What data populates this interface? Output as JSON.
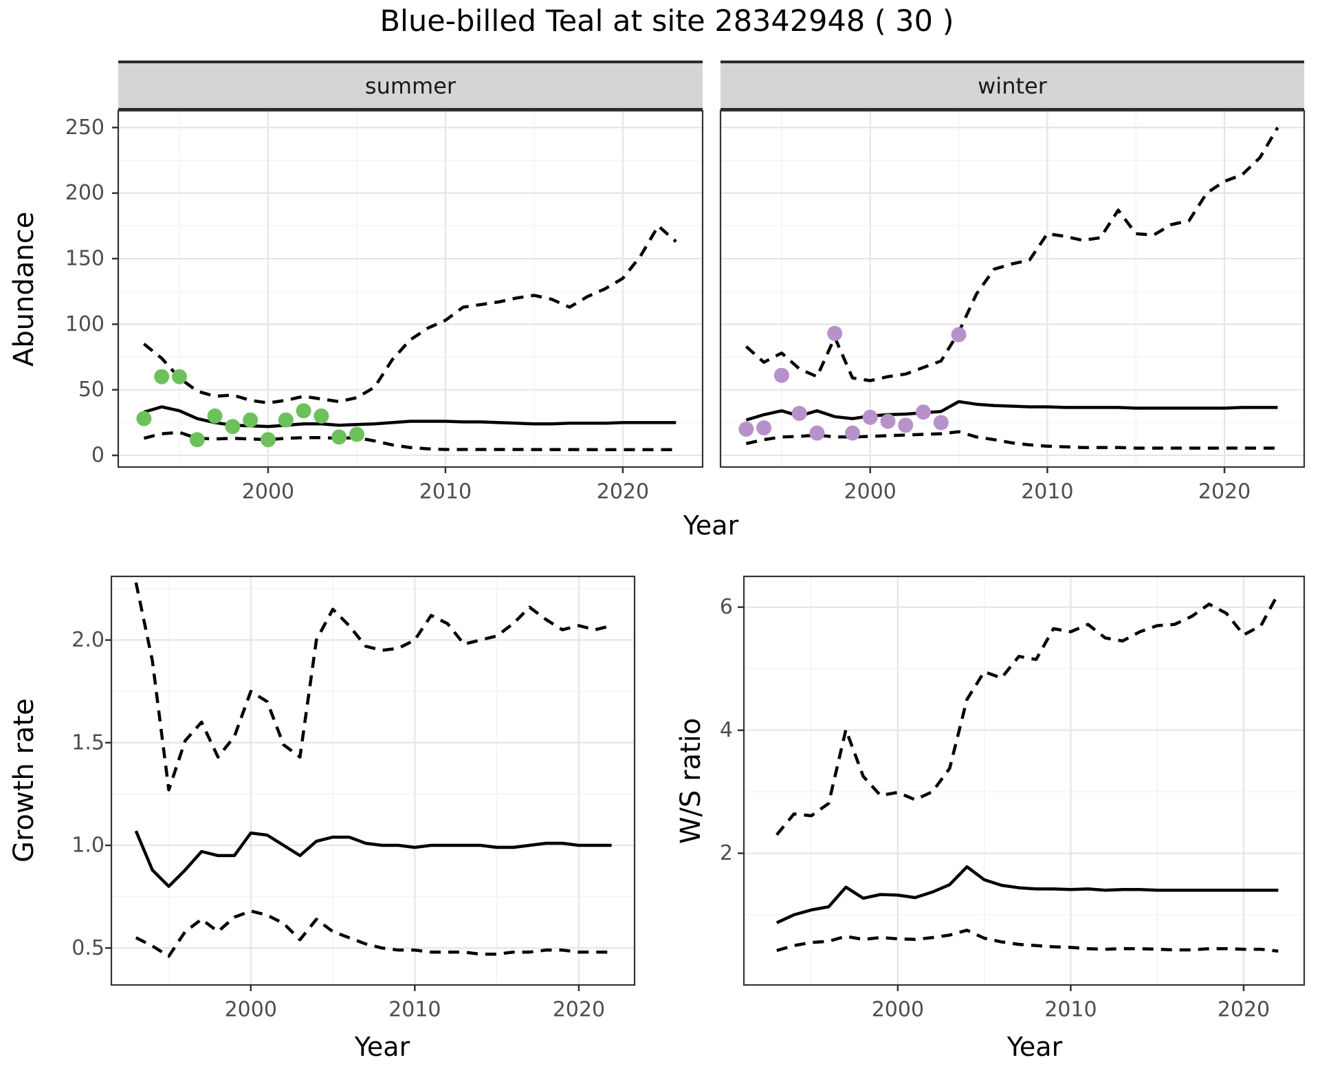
{
  "title": "Blue-billed Teal at site 28342948 ( 30 )",
  "facets": [
    "summer",
    "winter"
  ],
  "axis_labels": {
    "abundance": "Abundance",
    "growth": "Growth rate",
    "ws": "W/S ratio",
    "year": "Year"
  },
  "colors": {
    "summer_points": "#6dc15b",
    "winter_points": "#b792ca",
    "line": "#000000",
    "panel_border": "#333333",
    "grid_major": "#e5e5e5",
    "grid_minor": "#f2f2f2",
    "tick_label": "#4d4d4d",
    "strip_fill": "#d5d5d5"
  },
  "chart_data": [
    {
      "id": "abundance-summer",
      "type": "line",
      "facet": "summer",
      "xlabel": "Year",
      "ylabel": "Abundance",
      "xlim": [
        1991.55,
        2024.5
      ],
      "ylim": [
        -8.9,
        262.8
      ],
      "x_ticks": {
        "values": [
          2000,
          2010,
          2020
        ],
        "labels": [
          "2000",
          "2010",
          "2020"
        ]
      },
      "x_minor": [
        1995,
        2005,
        2015
      ],
      "y_ticks": {
        "values": [
          0,
          50,
          100,
          150,
          200,
          250
        ],
        "labels": [
          "0",
          "50",
          "100",
          "150",
          "200",
          "250"
        ]
      },
      "y_minor": [
        25,
        75,
        125,
        175,
        225
      ],
      "x": [
        1993,
        1994,
        1995,
        1996,
        1997,
        1998,
        1999,
        2000,
        2001,
        2002,
        2003,
        2004,
        2005,
        2006,
        2007,
        2008,
        2009,
        2010,
        2011,
        2012,
        2013,
        2014,
        2015,
        2016,
        2017,
        2018,
        2019,
        2020,
        2021,
        2022,
        2023
      ],
      "series": [
        {
          "name": "upper-95ci",
          "style": "dashed",
          "values": [
            85,
            74,
            59,
            49,
            45,
            46,
            42,
            40,
            42,
            45,
            43,
            41,
            44,
            52,
            73,
            88,
            97,
            103,
            113,
            115,
            117,
            120,
            122,
            119,
            113,
            121,
            127,
            135,
            152,
            175,
            163
          ]
        },
        {
          "name": "median",
          "style": "solid",
          "values": [
            33,
            37,
            34,
            28,
            25,
            23,
            22.5,
            22,
            23,
            24,
            24,
            23,
            23.5,
            24,
            25,
            26,
            26,
            26,
            25.5,
            25.5,
            25,
            24.5,
            24,
            24,
            24.5,
            24.5,
            24.5,
            25,
            25,
            25,
            25
          ]
        },
        {
          "name": "lower-95ci",
          "style": "dashed",
          "values": [
            13,
            16.5,
            17.5,
            13,
            12.5,
            13,
            12.5,
            12,
            13,
            13.5,
            13.5,
            13,
            13.5,
            11,
            8,
            6,
            5,
            4.5,
            4.5,
            4.5,
            4.5,
            4.5,
            4.4,
            4.4,
            4.4,
            4.4,
            4.3,
            4.3,
            4.3,
            4.3,
            4.3
          ]
        }
      ],
      "points": {
        "name": "observed-counts",
        "color": "#6dc15b",
        "x": [
          1993,
          1994,
          1995,
          1996,
          1997,
          1998,
          1999,
          2000,
          2001,
          2002,
          2003,
          2004,
          2005
        ],
        "values": [
          28,
          60,
          60,
          12,
          30,
          22,
          27,
          12,
          27,
          34,
          30,
          14,
          16
        ]
      }
    },
    {
      "id": "abundance-winter",
      "type": "line",
      "facet": "winter",
      "xlabel": "Year",
      "ylabel": "Abundance",
      "xlim": [
        1991.55,
        2024.5
      ],
      "ylim": [
        -8.9,
        262.8
      ],
      "x_ticks": {
        "values": [
          2000,
          2010,
          2020
        ],
        "labels": [
          "2000",
          "2010",
          "2020"
        ]
      },
      "x_minor": [
        1995,
        2005,
        2015
      ],
      "y_ticks": {
        "values": [
          0,
          50,
          100,
          150,
          200,
          250
        ],
        "labels": [
          "0",
          "50",
          "100",
          "150",
          "200",
          "250"
        ]
      },
      "y_minor": [
        25,
        75,
        125,
        175,
        225
      ],
      "x": [
        1993,
        1994,
        1995,
        1996,
        1997,
        1998,
        1999,
        2000,
        2001,
        2002,
        2003,
        2004,
        2005,
        2006,
        2007,
        2008,
        2009,
        2010,
        2011,
        2012,
        2013,
        2014,
        2015,
        2016,
        2017,
        2018,
        2019,
        2020,
        2021,
        2022,
        2023
      ],
      "series": [
        {
          "name": "upper-95ci",
          "style": "dashed",
          "values": [
            83,
            71,
            78,
            66,
            60,
            90,
            59,
            57,
            60,
            62,
            67,
            72,
            94,
            123,
            142,
            146,
            149,
            169,
            167,
            164,
            166,
            187,
            169,
            168,
            176,
            179,
            200,
            209,
            214,
            227,
            250
          ]
        },
        {
          "name": "median",
          "style": "solid",
          "values": [
            27,
            31,
            34,
            30,
            34,
            29.5,
            28,
            30,
            31,
            31.5,
            32.5,
            33.5,
            41,
            39,
            38,
            37.5,
            37,
            37,
            36.5,
            36.5,
            36.5,
            36.5,
            36,
            36,
            36,
            36,
            36,
            36,
            36.5,
            36.5,
            36.5
          ]
        },
        {
          "name": "lower-95ci",
          "style": "dashed",
          "values": [
            9,
            12,
            14,
            14.5,
            15.5,
            14,
            14,
            14.5,
            15,
            15.5,
            16,
            16.5,
            18,
            14,
            12,
            9.5,
            8,
            7,
            6.5,
            6,
            6,
            6,
            5.5,
            5.5,
            5.5,
            5.5,
            5.5,
            5.5,
            5.5,
            5.5,
            5.5
          ]
        }
      ],
      "points": {
        "name": "observed-counts",
        "color": "#b792ca",
        "x": [
          1993,
          1994,
          1995,
          1996,
          1997,
          1998,
          1999,
          2000,
          2001,
          2002,
          2003,
          2004,
          2005
        ],
        "values": [
          20,
          21,
          61,
          32,
          17,
          93,
          17,
          29,
          26,
          23,
          33,
          25,
          92
        ]
      }
    },
    {
      "id": "growth-rate",
      "type": "line",
      "facet": null,
      "xlabel": "Year",
      "ylabel": "Growth rate",
      "xlim": [
        1991.5,
        2023.4
      ],
      "ylim": [
        0.32,
        2.31
      ],
      "x_ticks": {
        "values": [
          2000,
          2010,
          2020
        ],
        "labels": [
          "2000",
          "2010",
          "2020"
        ]
      },
      "x_minor": [
        1995,
        2005,
        2015
      ],
      "y_ticks": {
        "values": [
          0.5,
          1.0,
          1.5,
          2.0
        ],
        "labels": [
          "0.5",
          "1.0",
          "1.5",
          "2.0"
        ]
      },
      "y_minor": [
        0.75,
        1.25,
        1.75,
        2.25
      ],
      "x": [
        1993,
        1994,
        1995,
        1996,
        1997,
        1998,
        1999,
        2000,
        2001,
        2002,
        2003,
        2004,
        2005,
        2006,
        2007,
        2008,
        2009,
        2010,
        2011,
        2012,
        2013,
        2014,
        2015,
        2016,
        2017,
        2018,
        2019,
        2020,
        2021,
        2022
      ],
      "series": [
        {
          "name": "upper-95ci",
          "style": "dashed",
          "values": [
            2.28,
            1.9,
            1.27,
            1.51,
            1.6,
            1.43,
            1.53,
            1.75,
            1.7,
            1.49,
            1.43,
            2.0,
            2.15,
            2.07,
            1.97,
            1.95,
            1.96,
            2.0,
            2.12,
            2.08,
            1.98,
            2.0,
            2.02,
            2.08,
            2.16,
            2.1,
            2.05,
            2.07,
            2.05,
            2.07
          ]
        },
        {
          "name": "median",
          "style": "solid",
          "values": [
            1.07,
            0.88,
            0.8,
            0.88,
            0.97,
            0.95,
            0.95,
            1.06,
            1.05,
            1.0,
            0.95,
            1.02,
            1.04,
            1.04,
            1.01,
            1.0,
            1.0,
            0.99,
            1.0,
            1.0,
            1.0,
            1.0,
            0.99,
            0.99,
            1.0,
            1.01,
            1.01,
            1.0,
            1.0,
            1.0
          ]
        },
        {
          "name": "lower-95ci",
          "style": "dashed",
          "values": [
            0.55,
            0.51,
            0.46,
            0.58,
            0.64,
            0.58,
            0.65,
            0.68,
            0.66,
            0.62,
            0.54,
            0.64,
            0.58,
            0.55,
            0.52,
            0.5,
            0.49,
            0.49,
            0.48,
            0.48,
            0.48,
            0.47,
            0.47,
            0.48,
            0.48,
            0.49,
            0.49,
            0.48,
            0.48,
            0.48
          ]
        }
      ],
      "points": null
    },
    {
      "id": "ws-ratio",
      "type": "line",
      "facet": null,
      "xlabel": "Year",
      "ylabel": "W/S ratio",
      "xlim": [
        1991.1,
        2023.5
      ],
      "ylim": [
        -0.14,
        6.5
      ],
      "x_ticks": {
        "values": [
          2000,
          2010,
          2020
        ],
        "labels": [
          "2000",
          "2010",
          "2020"
        ]
      },
      "x_minor": [
        1995,
        2005,
        2015
      ],
      "y_ticks": {
        "values": [
          2,
          4,
          6
        ],
        "labels": [
          "2",
          "4",
          "6"
        ]
      },
      "y_minor": [
        1,
        3,
        5
      ],
      "x": [
        1993,
        1994,
        1995,
        1996,
        1997,
        1998,
        1999,
        2000,
        2001,
        2002,
        2003,
        2004,
        2005,
        2006,
        2007,
        2008,
        2009,
        2010,
        2011,
        2012,
        2013,
        2014,
        2015,
        2016,
        2017,
        2018,
        2019,
        2020,
        2021,
        2022
      ],
      "series": [
        {
          "name": "upper-95ci",
          "style": "dashed",
          "values": [
            2.3,
            2.64,
            2.61,
            2.81,
            4.01,
            3.25,
            2.94,
            2.99,
            2.87,
            3.0,
            3.38,
            4.5,
            4.95,
            4.85,
            5.2,
            5.15,
            5.65,
            5.6,
            5.72,
            5.5,
            5.45,
            5.6,
            5.7,
            5.72,
            5.85,
            6.05,
            5.9,
            5.55,
            5.7,
            6.22
          ]
        },
        {
          "name": "median",
          "style": "solid",
          "values": [
            0.87,
            1.0,
            1.08,
            1.13,
            1.45,
            1.27,
            1.33,
            1.32,
            1.28,
            1.37,
            1.49,
            1.78,
            1.57,
            1.48,
            1.44,
            1.42,
            1.42,
            1.41,
            1.42,
            1.4,
            1.41,
            1.41,
            1.4,
            1.4,
            1.4,
            1.4,
            1.4,
            1.4,
            1.4,
            1.4
          ]
        },
        {
          "name": "lower-95ci",
          "style": "dashed",
          "values": [
            0.42,
            0.5,
            0.55,
            0.57,
            0.65,
            0.6,
            0.63,
            0.61,
            0.6,
            0.63,
            0.67,
            0.75,
            0.62,
            0.56,
            0.52,
            0.5,
            0.48,
            0.47,
            0.45,
            0.44,
            0.45,
            0.45,
            0.44,
            0.43,
            0.43,
            0.45,
            0.45,
            0.44,
            0.44,
            0.41
          ]
        }
      ],
      "points": null
    }
  ]
}
